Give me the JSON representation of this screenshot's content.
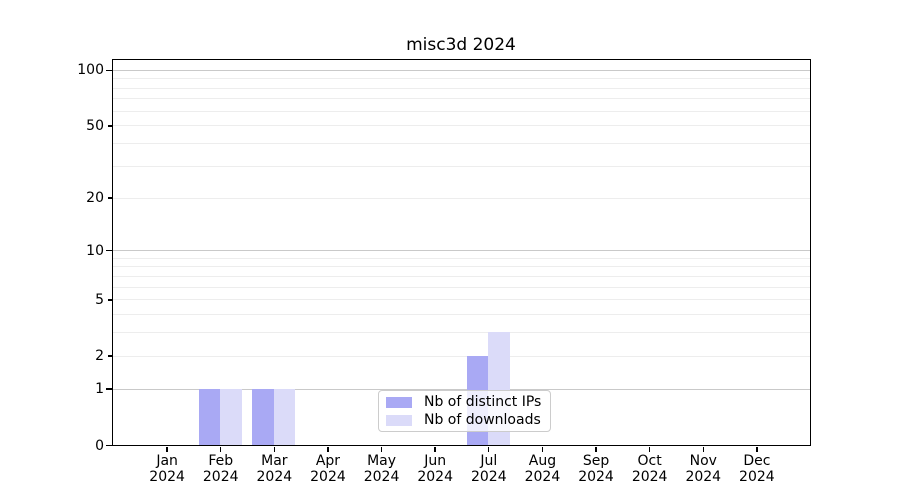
{
  "chart_data": {
    "type": "bar",
    "title": "misc3d 2024",
    "categories": [
      {
        "month": "Jan",
        "year": "2024"
      },
      {
        "month": "Feb",
        "year": "2024"
      },
      {
        "month": "Mar",
        "year": "2024"
      },
      {
        "month": "Apr",
        "year": "2024"
      },
      {
        "month": "May",
        "year": "2024"
      },
      {
        "month": "Jun",
        "year": "2024"
      },
      {
        "month": "Jul",
        "year": "2024"
      },
      {
        "month": "Aug",
        "year": "2024"
      },
      {
        "month": "Sep",
        "year": "2024"
      },
      {
        "month": "Oct",
        "year": "2024"
      },
      {
        "month": "Nov",
        "year": "2024"
      },
      {
        "month": "Dec",
        "year": "2024"
      }
    ],
    "series": [
      {
        "name": "Nb of distinct IPs",
        "color": "#a9a9f4",
        "values": [
          0,
          1,
          1,
          0,
          0,
          0,
          2,
          0,
          0,
          0,
          0,
          0
        ]
      },
      {
        "name": "Nb of downloads",
        "color": "#dbdbf9",
        "values": [
          0,
          1,
          1,
          0,
          0,
          0,
          3,
          0,
          0,
          0,
          0,
          0
        ]
      }
    ],
    "yscale": "log1p",
    "ylim": [
      0,
      113
    ],
    "yticks": [
      0,
      1,
      2,
      5,
      10,
      20,
      50,
      100
    ],
    "major_gridlines": [
      1,
      10,
      100
    ],
    "minor_gridlines": [
      2,
      3,
      4,
      5,
      6,
      7,
      8,
      9,
      20,
      30,
      40,
      50,
      60,
      70,
      80,
      90
    ],
    "grid": true,
    "legend_position": "bottom-center"
  },
  "colors": {
    "axis": "#000000",
    "grid_major": "#c9c9c9",
    "grid_minor": "#ededed",
    "legend_border": "#cccccc",
    "background": "#ffffff"
  }
}
